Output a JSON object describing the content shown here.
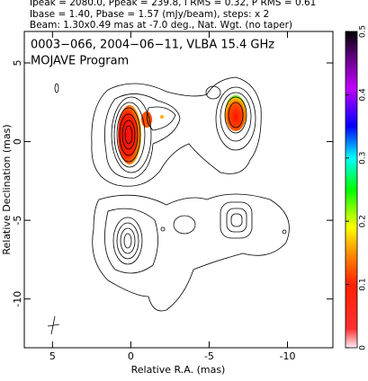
{
  "chart_data": {
    "type": "contour",
    "header": [
      "Ipeak = 2080.0, Ppeak = 239.8, I RMS = 0.32, P RMS = 0.61",
      "Ibase = 1.40, Pbase = 1.57 (mJy/beam), steps: x 2",
      "Beam: 1.30x0.49 mas at -7.0 deg., Nat. Wgt. (no taper)"
    ],
    "title": "0003−066, 2004−06−11, VLBA 15.4 GHz",
    "subtitle": "MOJAVE Program",
    "x_label": "Relative R.A. (mas)",
    "y_label": "Relative Declination (mas)",
    "xlim": [
      6.8,
      -12.9
    ],
    "xticks": [
      5,
      0,
      -5,
      -10
    ],
    "ylim": [
      -13.1,
      7.0
    ],
    "yticks": [
      5,
      0,
      -5,
      -10
    ],
    "colorbar": {
      "lim": [
        0,
        0.5
      ],
      "ticks": [
        0,
        0.1,
        0.2,
        0.3,
        0.4,
        0.5
      ]
    }
  }
}
